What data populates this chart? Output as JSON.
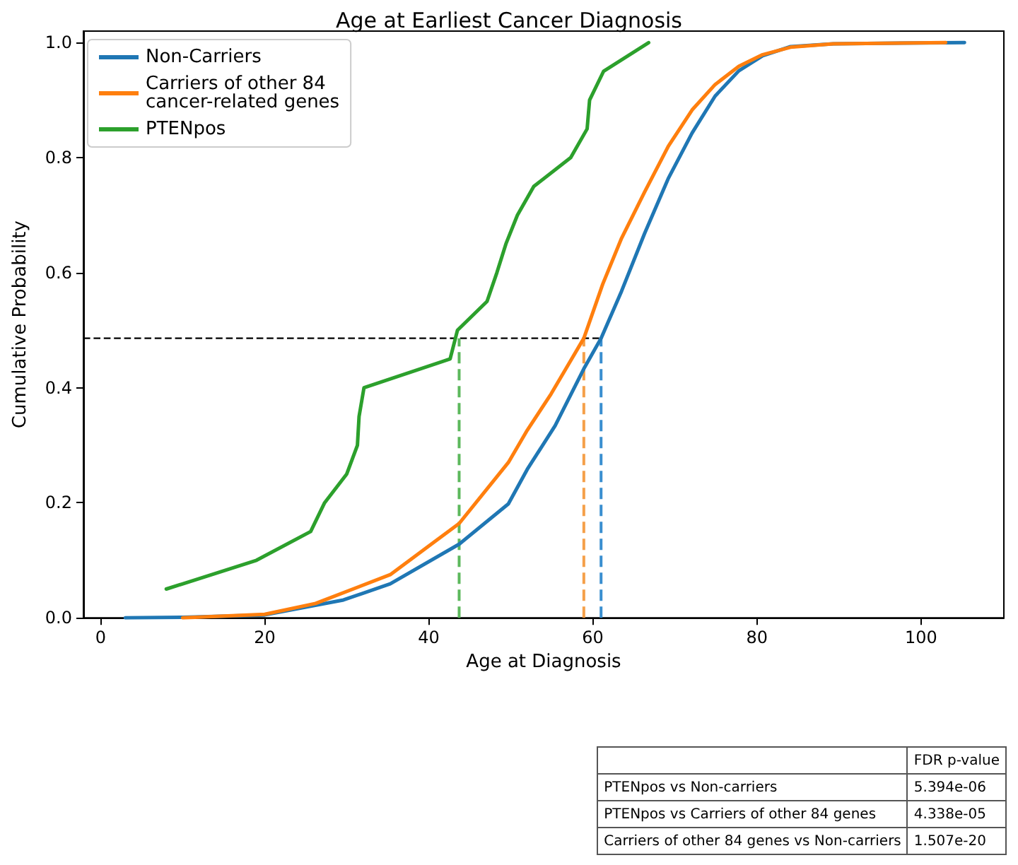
{
  "chart_data": {
    "type": "line",
    "title": "Age at Earliest Cancer Diagnosis",
    "xlabel": "Age at Diagnosis",
    "ylabel": "Cumulative Probability",
    "xlim": [
      -2.1,
      110.1
    ],
    "xticks": [
      0,
      20,
      40,
      60,
      80,
      100
    ],
    "ylim": [
      0,
      1.02
    ],
    "yticks": [
      {
        "value": 0,
        "label": "0.0"
      },
      0.2,
      0.4,
      0.6,
      0.8,
      {
        "value": 1,
        "label": "1.0"
      }
    ],
    "grid": false,
    "legend": "top left",
    "marker": "none",
    "line_style": "solid",
    "series": [
      {
        "name": "Non-Carriers",
        "color": "#1f77b4",
        "x": [
          3,
          10,
          20,
          29.6,
          35.3,
          43.7,
          49.7,
          52,
          55.4,
          58.9,
          61,
          63.5,
          66.3,
          69.2,
          72.1,
          74.9,
          77.8,
          80.7,
          84.1,
          89.3,
          105.3
        ],
        "values": [
          0,
          0.001,
          0.005,
          0.031,
          0.059,
          0.128,
          0.198,
          0.258,
          0.334,
          0.433,
          0.486,
          0.568,
          0.668,
          0.764,
          0.843,
          0.907,
          0.951,
          0.977,
          0.993,
          0.998,
          1.0
        ]
      },
      {
        "name": "Carriers of other 84 cancer-related genes",
        "color": "#ff7f0e",
        "x": [
          10,
          20,
          26.2,
          35.3,
          43.7,
          49.7,
          52,
          54.9,
          58.9,
          61.2,
          63.5,
          66.3,
          69.2,
          72.1,
          74.9,
          77.8,
          80.7,
          84.1,
          89.3,
          103
        ],
        "values": [
          0,
          0.006,
          0.025,
          0.075,
          0.164,
          0.27,
          0.326,
          0.389,
          0.486,
          0.58,
          0.66,
          0.74,
          0.82,
          0.883,
          0.927,
          0.959,
          0.979,
          0.992,
          0.998,
          1.0
        ]
      },
      {
        "name": "PTENpos",
        "color": "#2ca02c",
        "x": [
          8,
          19,
          25.6,
          27.3,
          30,
          31.3,
          31.5,
          32.1,
          42.6,
          43.5,
          47.1,
          48.3,
          49.4,
          50.8,
          52.8,
          57.3,
          59.3,
          59.6,
          61.3,
          66.8
        ],
        "values": [
          0.05,
          0.1,
          0.15,
          0.2,
          0.25,
          0.3,
          0.35,
          0.4,
          0.45,
          0.5,
          0.55,
          0.6,
          0.65,
          0.7,
          0.75,
          0.8,
          0.85,
          0.9,
          0.95,
          1.0
        ]
      }
    ],
    "ref_lines": [
      {
        "axis": "y",
        "value": 0.486,
        "color": "#000000",
        "line_style": "dashed"
      },
      {
        "axis": "x",
        "value": 43.7,
        "color": "#5cb85c",
        "line_style": "dashed"
      },
      {
        "axis": "x",
        "value": 58.9,
        "color": "#f5a04a",
        "line_style": "dashed"
      },
      {
        "axis": "x",
        "value": 61.0,
        "color": "#3a8fd0",
        "line_style": "dashed"
      }
    ],
    "annotations": [
      "FDR p-value",
      "PTENpos vs Non-carriers",
      "5.394e-06",
      "PTENpos vs Carriers of other 84 genes",
      "4.338e-05",
      "Carriers of other 84 genes vs Non-carriers",
      "1.507e-20"
    ]
  }
}
